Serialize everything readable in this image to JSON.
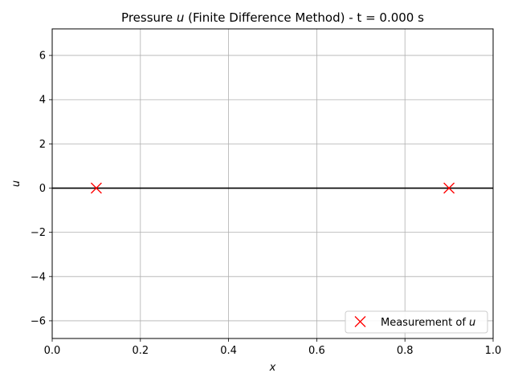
{
  "chart_data": {
    "type": "line",
    "title": "Pressure u (Finite Difference Method) - t = 0.000 s",
    "title_parts": {
      "before": "Pressure ",
      "var": "u",
      "after": " (Finite Difference Method) - t = 0.000 s"
    },
    "xlabel": "x",
    "ylabel": "u",
    "xlim": [
      0.0,
      1.0
    ],
    "ylim": [
      -6.8,
      7.2
    ],
    "xticks": [
      0.0,
      0.2,
      0.4,
      0.6,
      0.8,
      1.0
    ],
    "xtick_labels": [
      "0.0",
      "0.2",
      "0.4",
      "0.6",
      "0.8",
      "1.0"
    ],
    "yticks": [
      -6,
      -4,
      -2,
      0,
      2,
      4,
      6
    ],
    "ytick_labels": [
      "−6",
      "−4",
      "−2",
      "0",
      "2",
      "4",
      "6"
    ],
    "grid": true,
    "legend_position": "lower-right",
    "series": [
      {
        "kind": "line",
        "color": "#000000",
        "x": [
          0.0,
          1.0
        ],
        "y": [
          0.0,
          0.0
        ]
      },
      {
        "kind": "scatter",
        "name": "Measurement of u",
        "name_parts": {
          "before": "Measurement of ",
          "var": "u"
        },
        "marker": "x",
        "color": "#ff0000",
        "x": [
          0.1,
          0.9
        ],
        "y": [
          0.0,
          0.0
        ]
      }
    ]
  }
}
